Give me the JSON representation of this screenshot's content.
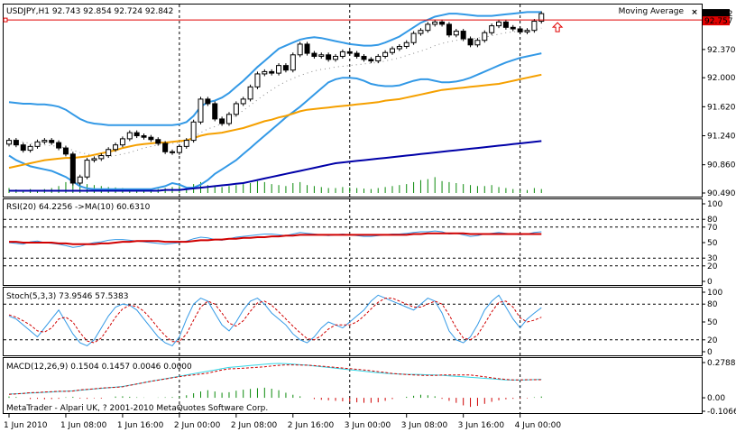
{
  "chart_data": {
    "type": "candlestick",
    "symbol_header": "USDJPY,H1  92.743 92.854 92.724 92.842",
    "indicator_label": "Moving Average",
    "close_label": "×",
    "x_ticks": [
      "1 Jun 2010",
      "1 Jun 08:00",
      "1 Jun 16:00",
      "2 Jun 00:00",
      "2 Jun 08:00",
      "2 Jun 16:00",
      "3 Jun 00:00",
      "3 Jun 08:00",
      "3 Jun 16:00",
      "4 Jun 00:00"
    ],
    "x_tick_bars": [
      0,
      8,
      16,
      24,
      32,
      40,
      48,
      56,
      64,
      72
    ],
    "session_separator_bars": [
      24,
      48,
      72
    ],
    "copyright": "MetaTrader - Alpari UK, ? 2001-2010 MetaQuotes Software Corp.",
    "price": {
      "y_range": [
        90.49,
        92.9
      ],
      "y_ticks": [
        "92.370",
        "92.000",
        "91.620",
        "91.240",
        "90.860",
        "90.490"
      ],
      "y_tick_values": [
        92.37,
        92.0,
        91.62,
        91.24,
        90.86,
        90.49
      ],
      "current_price": "92.842",
      "ask_line_price": "92.757",
      "ask_line_value": 92.757,
      "up_arrow_bar": 76,
      "closes": [
        91.18,
        91.12,
        91.05,
        91.1,
        91.16,
        91.18,
        91.15,
        91.08,
        91.0,
        90.62,
        90.7,
        90.92,
        90.94,
        90.98,
        91.06,
        91.12,
        91.2,
        91.28,
        91.24,
        91.22,
        91.19,
        91.14,
        91.03,
        91.02,
        91.1,
        91.18,
        91.42,
        91.72,
        91.66,
        91.46,
        91.4,
        91.52,
        91.66,
        91.72,
        91.88,
        92.05,
        92.08,
        92.06,
        92.16,
        92.1,
        92.3,
        92.44,
        92.32,
        92.28,
        92.3,
        92.24,
        92.28,
        92.34,
        92.32,
        92.28,
        92.24,
        92.22,
        92.28,
        92.33,
        92.38,
        92.41,
        92.46,
        92.58,
        92.62,
        92.7,
        92.73,
        92.7,
        92.56,
        92.61,
        92.51,
        92.43,
        92.49,
        92.59,
        92.68,
        92.73,
        92.66,
        92.64,
        92.6,
        92.62,
        92.74,
        92.84
      ],
      "ma_fast": [
        90.82,
        90.84,
        90.86,
        90.88,
        90.9,
        90.92,
        90.93,
        90.94,
        90.95,
        90.95,
        90.96,
        90.97,
        90.99,
        91.01,
        91.03,
        91.05,
        91.08,
        91.1,
        91.12,
        91.13,
        91.14,
        91.15,
        91.15,
        91.16,
        91.17,
        91.18,
        91.21,
        91.24,
        91.26,
        91.27,
        91.28,
        91.3,
        91.32,
        91.34,
        91.37,
        91.4,
        91.43,
        91.45,
        91.48,
        91.5,
        91.53,
        91.56,
        91.58,
        91.59,
        91.6,
        91.61,
        91.62,
        91.63,
        91.64,
        91.65,
        91.66,
        91.67,
        91.68,
        91.7,
        91.71,
        91.72,
        91.74,
        91.76,
        91.78,
        91.8,
        91.82,
        91.84,
        91.85,
        91.86,
        91.87,
        91.88,
        91.89,
        91.9,
        91.91,
        91.92,
        91.94,
        91.96,
        91.98,
        92.0,
        92.02,
        92.04
      ],
      "ma_slow": [
        90.52,
        90.52,
        90.52,
        90.52,
        90.52,
        90.52,
        90.52,
        90.52,
        90.52,
        90.52,
        90.52,
        90.52,
        90.52,
        90.52,
        90.52,
        90.52,
        90.52,
        90.52,
        90.52,
        90.52,
        90.52,
        90.52,
        90.53,
        90.53,
        90.53,
        90.54,
        90.55,
        90.56,
        90.57,
        90.58,
        90.59,
        90.6,
        90.61,
        90.62,
        90.64,
        90.66,
        90.68,
        90.7,
        90.72,
        90.74,
        90.76,
        90.78,
        90.8,
        90.82,
        90.84,
        90.86,
        90.88,
        90.89,
        90.9,
        90.91,
        90.92,
        90.93,
        90.94,
        90.95,
        90.96,
        90.97,
        90.98,
        90.99,
        91.0,
        91.01,
        91.02,
        91.03,
        91.04,
        91.05,
        91.06,
        91.07,
        91.08,
        91.09,
        91.1,
        91.11,
        91.12,
        91.13,
        91.14,
        91.15,
        91.16,
        91.17
      ],
      "band_upper": [
        91.68,
        91.67,
        91.66,
        91.66,
        91.65,
        91.65,
        91.64,
        91.62,
        91.58,
        91.52,
        91.46,
        91.42,
        91.4,
        91.39,
        91.38,
        91.38,
        91.38,
        91.38,
        91.38,
        91.38,
        91.38,
        91.38,
        91.38,
        91.38,
        91.39,
        91.42,
        91.5,
        91.62,
        91.68,
        91.7,
        91.74,
        91.8,
        91.88,
        91.96,
        92.05,
        92.14,
        92.22,
        92.3,
        92.38,
        92.42,
        92.46,
        92.5,
        92.52,
        92.53,
        92.52,
        92.5,
        92.48,
        92.46,
        92.44,
        92.43,
        92.42,
        92.42,
        92.43,
        92.46,
        92.5,
        92.54,
        92.6,
        92.66,
        92.72,
        92.76,
        92.8,
        92.82,
        92.84,
        92.84,
        92.83,
        92.82,
        92.81,
        92.81,
        92.81,
        92.82,
        92.83,
        92.84,
        92.85,
        92.86,
        92.86,
        92.86
      ],
      "band_middle": [
        91.2,
        91.18,
        91.16,
        91.14,
        91.13,
        91.12,
        91.11,
        91.1,
        91.08,
        91.05,
        91.02,
        91.0,
        90.98,
        90.97,
        90.97,
        90.98,
        91.0,
        91.02,
        91.05,
        91.08,
        91.1,
        91.12,
        91.13,
        91.14,
        91.15,
        91.18,
        91.22,
        91.28,
        91.33,
        91.36,
        91.4,
        91.45,
        91.51,
        91.57,
        91.64,
        91.71,
        91.78,
        91.84,
        91.9,
        91.95,
        91.99,
        92.03,
        92.06,
        92.09,
        92.11,
        92.12,
        92.14,
        92.15,
        92.16,
        92.17,
        92.18,
        92.19,
        92.2,
        92.22,
        92.24,
        92.26,
        92.29,
        92.32,
        92.35,
        92.38,
        92.42,
        92.45,
        92.47,
        92.49,
        92.5,
        92.51,
        92.52,
        92.53,
        92.55,
        92.57,
        92.59,
        92.6,
        92.61,
        92.62,
        92.63,
        92.65
      ],
      "band_lower": [
        90.98,
        90.92,
        90.88,
        90.84,
        90.82,
        90.8,
        90.78,
        90.74,
        90.7,
        90.64,
        90.58,
        90.55,
        90.54,
        90.54,
        90.54,
        90.54,
        90.54,
        90.54,
        90.54,
        90.54,
        90.54,
        90.56,
        90.58,
        90.62,
        90.6,
        90.56,
        90.56,
        90.6,
        90.66,
        90.74,
        90.8,
        90.86,
        90.92,
        91.0,
        91.08,
        91.16,
        91.24,
        91.32,
        91.4,
        91.48,
        91.55,
        91.62,
        91.7,
        91.78,
        91.86,
        91.94,
        91.98,
        92.0,
        92.0,
        91.99,
        91.96,
        91.92,
        91.9,
        91.89,
        91.89,
        91.9,
        91.93,
        91.96,
        91.98,
        91.98,
        91.96,
        91.94,
        91.94,
        91.95,
        91.97,
        92.0,
        92.04,
        92.08,
        92.12,
        92.16,
        92.2,
        92.23,
        92.26,
        92.28,
        92.3,
        92.32
      ],
      "volume_fraction": [
        0.25,
        0.18,
        0.15,
        0.2,
        0.12,
        0.2,
        0.25,
        0.35,
        0.55,
        0.85,
        0.65,
        0.45,
        0.4,
        0.35,
        0.3,
        0.28,
        0.25,
        0.22,
        0.2,
        0.18,
        0.15,
        0.2,
        0.25,
        0.3,
        0.35,
        0.3,
        0.45,
        0.55,
        0.4,
        0.35,
        0.3,
        0.35,
        0.4,
        0.45,
        0.5,
        0.6,
        0.55,
        0.45,
        0.4,
        0.35,
        0.5,
        0.55,
        0.4,
        0.35,
        0.3,
        0.25,
        0.25,
        0.3,
        0.28,
        0.25,
        0.22,
        0.2,
        0.25,
        0.3,
        0.35,
        0.4,
        0.45,
        0.55,
        0.65,
        0.7,
        0.8,
        0.6,
        0.55,
        0.5,
        0.45,
        0.4,
        0.35,
        0.35,
        0.4,
        0.3,
        0.25,
        0.2,
        0.15,
        0.15,
        0.25,
        0.2
      ]
    },
    "rsi": {
      "label": "RSI(20) 64.2256  ->MA(10) 60.6310",
      "y_range": [
        0,
        100
      ],
      "y_ticks": [
        "100",
        "80",
        "70",
        "50",
        "30",
        "20",
        "0"
      ],
      "y_tick_values": [
        100,
        80,
        70,
        50,
        30,
        20,
        0
      ],
      "levels": [
        80,
        70,
        30,
        20
      ],
      "values": [
        50,
        49,
        48,
        51,
        52,
        50,
        49,
        48,
        46,
        44,
        45,
        48,
        50,
        51,
        53,
        54,
        54,
        53,
        52,
        51,
        50,
        49,
        48,
        49,
        50,
        52,
        55,
        57,
        56,
        54,
        53,
        55,
        57,
        58,
        59,
        60,
        61,
        61,
        60,
        59,
        61,
        63,
        62,
        61,
        60,
        59,
        60,
        61,
        60,
        59,
        58,
        58,
        59,
        60,
        61,
        61,
        62,
        63,
        64,
        64,
        65,
        64,
        61,
        62,
        60,
        58,
        59,
        61,
        62,
        63,
        62,
        61,
        60,
        61,
        63,
        64
      ],
      "ma": [
        51,
        51,
        50,
        50,
        50,
        50,
        50,
        49,
        49,
        48,
        48,
        48,
        48,
        49,
        49,
        50,
        51,
        51,
        52,
        52,
        52,
        52,
        51,
        51,
        51,
        51,
        52,
        53,
        53,
        54,
        54,
        55,
        55,
        56,
        56,
        57,
        57,
        58,
        58,
        59,
        59,
        60,
        60,
        60,
        60,
        60,
        60,
        60,
        60,
        60,
        60,
        60,
        60,
        60,
        60,
        60,
        60,
        61,
        61,
        62,
        62,
        62,
        62,
        62,
        62,
        61,
        61,
        61,
        61,
        61,
        61,
        61,
        61,
        61,
        61,
        61
      ]
    },
    "stochastic": {
      "label": "Stoch(5,3,3) 73.9546 57.5383",
      "y_range": [
        0,
        100
      ],
      "y_ticks": [
        "100",
        "80",
        "50",
        "20",
        "0"
      ],
      "y_tick_values": [
        100,
        80,
        50,
        20,
        0
      ],
      "levels": [
        80,
        20
      ],
      "main": [
        60,
        55,
        45,
        35,
        25,
        40,
        55,
        70,
        50,
        30,
        15,
        10,
        20,
        40,
        60,
        75,
        80,
        78,
        70,
        55,
        40,
        25,
        15,
        10,
        25,
        55,
        80,
        90,
        85,
        65,
        45,
        35,
        50,
        70,
        85,
        90,
        80,
        65,
        55,
        45,
        30,
        20,
        15,
        25,
        40,
        50,
        45,
        40,
        50,
        60,
        70,
        85,
        95,
        90,
        85,
        80,
        75,
        70,
        80,
        90,
        85,
        65,
        35,
        20,
        15,
        25,
        45,
        70,
        85,
        95,
        75,
        55,
        40,
        55,
        65,
        74
      ],
      "signal": [
        62,
        58,
        52,
        45,
        35,
        33,
        40,
        55,
        58,
        50,
        32,
        18,
        15,
        23,
        40,
        58,
        72,
        78,
        76,
        68,
        55,
        40,
        27,
        17,
        17,
        30,
        53,
        75,
        85,
        80,
        65,
        48,
        43,
        52,
        68,
        82,
        85,
        78,
        67,
        55,
        43,
        32,
        22,
        20,
        27,
        38,
        45,
        45,
        45,
        50,
        60,
        72,
        83,
        90,
        90,
        85,
        80,
        75,
        75,
        80,
        85,
        80,
        62,
        40,
        23,
        20,
        28,
        47,
        67,
        83,
        85,
        75,
        57,
        50,
        53,
        58
      ]
    },
    "macd": {
      "label": "MACD(12,26,9) 0.1504 0.1457 0.0046 0.0000",
      "y_range": [
        -0.1066,
        0.2788
      ],
      "y_ticks": [
        "0.2788",
        "0.00",
        "-0.1066"
      ],
      "y_tick_values": [
        0.2788,
        0.0,
        -0.1066
      ],
      "histogram": [
        0.005,
        0.003,
        0.0,
        -0.005,
        -0.004,
        -0.006,
        -0.005,
        -0.004,
        0.002,
        0.004,
        -0.003,
        -0.004,
        -0.002,
        -0.003,
        0.0,
        0.005,
        0.006,
        0.004,
        0.002,
        0.001,
        0.0,
        0.001,
        0.002,
        0.003,
        0.006,
        0.01,
        0.018,
        0.025,
        0.03,
        0.025,
        0.02,
        0.022,
        0.028,
        0.032,
        0.035,
        0.038,
        0.04,
        0.036,
        0.03,
        0.02,
        0.012,
        0.006,
        0.0,
        -0.005,
        -0.008,
        -0.01,
        -0.012,
        -0.014,
        -0.016,
        -0.018,
        -0.02,
        -0.02,
        -0.018,
        -0.012,
        -0.005,
        0.0,
        0.004,
        0.008,
        0.012,
        0.01,
        0.006,
        -0.004,
        -0.012,
        -0.02,
        -0.03,
        -0.036,
        -0.032,
        -0.024,
        -0.016,
        -0.01,
        -0.006,
        -0.004,
        -0.004,
        -0.002,
        0.002,
        0.005
      ],
      "signal": [
        0.03,
        0.032,
        0.035,
        0.038,
        0.04,
        0.043,
        0.046,
        0.05,
        0.052,
        0.055,
        0.06,
        0.065,
        0.07,
        0.075,
        0.08,
        0.085,
        0.09,
        0.1,
        0.11,
        0.12,
        0.13,
        0.14,
        0.15,
        0.16,
        0.17,
        0.18,
        0.19,
        0.2,
        0.21,
        0.22,
        0.23,
        0.24,
        0.245,
        0.25,
        0.255,
        0.26,
        0.265,
        0.27,
        0.272,
        0.27,
        0.266,
        0.262,
        0.258,
        0.252,
        0.246,
        0.24,
        0.234,
        0.228,
        0.222,
        0.216,
        0.21,
        0.204,
        0.198,
        0.194,
        0.19,
        0.188,
        0.186,
        0.185,
        0.184,
        0.182,
        0.18,
        0.178,
        0.174,
        0.17,
        0.166,
        0.162,
        0.158,
        0.154,
        0.15,
        0.146,
        0.142,
        0.14,
        0.14,
        0.142,
        0.144,
        0.146
      ]
    }
  }
}
